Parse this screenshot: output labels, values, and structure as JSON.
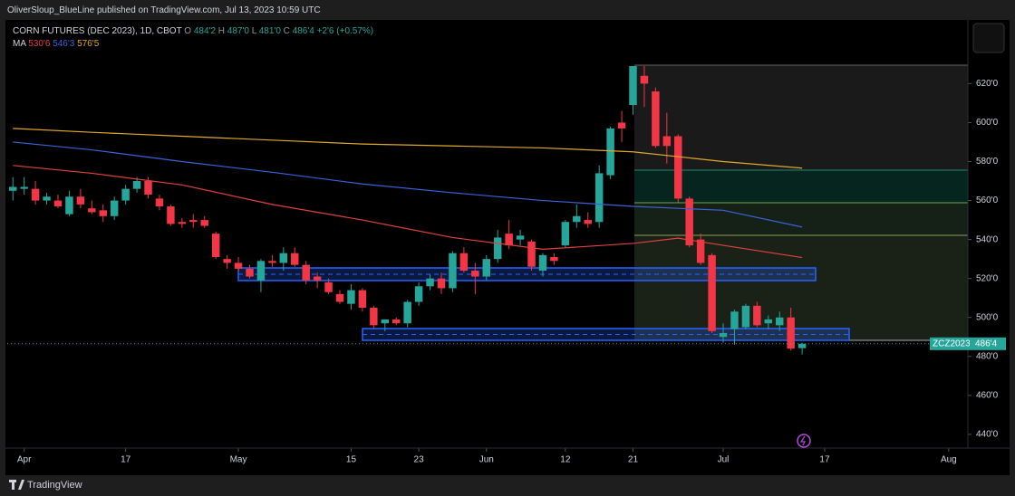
{
  "header": {
    "publisher": "OliverSloup_BlueLine published on TradingView.com, Jul 13, 2023 10:59 UTC",
    "symbol": "CORN FUTURES (DEC 2023), 1D, CBOT",
    "ohlc": [
      {
        "label": "O",
        "value": "484'2"
      },
      {
        "label": "H",
        "value": "487'0"
      },
      {
        "label": "L",
        "value": "481'0"
      },
      {
        "label": "C",
        "value": "486'4"
      }
    ],
    "change": "+2'6 (+0.57%)"
  },
  "footer": {
    "brand": "TradingView"
  },
  "chart_data": {
    "type": "candlestick",
    "up_color": "#26a69a",
    "down_color": "#f23645",
    "open": [
      565,
      566,
      566,
      560,
      560,
      553,
      562,
      556,
      555,
      552,
      560,
      566,
      570,
      561,
      557,
      549,
      550,
      550,
      543,
      530,
      528,
      525,
      519,
      529,
      528,
      533,
      527,
      521,
      518,
      512,
      507,
      514,
      505,
      497,
      499,
      497,
      508,
      516,
      520,
      515,
      533,
      524,
      521,
      530,
      543,
      540,
      539,
      524,
      531,
      537,
      549,
      550,
      549,
      573,
      600,
      609,
      624,
      616,
      593,
      593,
      561,
      540,
      532,
      490,
      494,
      495,
      506,
      497,
      496,
      500,
      484.25
    ],
    "high": [
      572,
      572,
      570,
      564,
      563,
      565,
      566,
      560,
      558,
      562,
      568,
      572,
      572,
      563,
      558,
      551,
      553,
      552,
      544,
      532,
      531,
      527,
      530,
      532,
      536,
      536,
      529,
      523,
      520,
      514,
      517,
      515,
      506,
      499,
      500,
      509,
      518,
      522,
      523,
      534,
      536,
      528,
      532,
      545,
      550,
      545,
      540,
      533,
      533,
      550,
      558,
      554,
      578,
      598,
      606,
      629,
      629,
      618,
      605,
      594,
      562,
      543,
      533,
      497,
      504,
      507,
      508,
      501,
      503,
      505,
      487
    ],
    "low": [
      560,
      563,
      558,
      558,
      556,
      552,
      556,
      553,
      549,
      550,
      558,
      564,
      561,
      555,
      547,
      546,
      546,
      546,
      530,
      525,
      524,
      520,
      513,
      526,
      524,
      526,
      517,
      515,
      512,
      507,
      504,
      503,
      494,
      493,
      496,
      495,
      506,
      514,
      512,
      513,
      523,
      512,
      519,
      528,
      535,
      537,
      524,
      521,
      527,
      536,
      546,
      546,
      546,
      571,
      590,
      604,
      608,
      587,
      579,
      559,
      536,
      527,
      492,
      487,
      486,
      494,
      495,
      494,
      493,
      483,
      481
    ],
    "close": [
      567,
      567,
      560,
      562,
      557,
      562,
      558,
      554,
      552,
      560,
      566,
      570,
      563,
      557,
      548,
      548,
      549,
      547,
      531,
      528,
      525,
      521,
      529,
      528,
      533,
      527,
      519,
      519,
      513,
      508,
      514,
      505,
      496,
      499,
      497,
      508,
      516,
      520,
      515,
      533,
      524,
      521,
      530,
      541,
      537,
      542,
      526,
      532,
      529,
      549,
      552,
      548,
      574,
      597,
      597,
      629,
      620,
      588,
      588,
      561,
      537,
      528,
      493,
      492,
      503,
      506,
      496,
      499,
      500,
      484,
      486.5
    ],
    "ma_label": "MA",
    "moving_averages": [
      {
        "name": "530'6",
        "color": "#e0413f",
        "x": [
          0,
          7,
          15,
          23,
          31,
          39,
          47,
          55,
          59,
          63,
          70
        ],
        "values": [
          578,
          574,
          568,
          558,
          550,
          541,
          535,
          538,
          540.7,
          537,
          530.75
        ]
      },
      {
        "name": "546'3",
        "color": "#3a63d8",
        "x": [
          0,
          7,
          15,
          23,
          31,
          39,
          47,
          55,
          63,
          70
        ],
        "values": [
          590,
          586,
          580,
          574.5,
          568.5,
          564,
          560,
          557,
          555,
          546.375
        ]
      },
      {
        "name": "576'5",
        "color": "#e0a92b",
        "x": [
          0,
          7,
          15,
          23,
          31,
          39,
          47,
          55,
          63,
          70
        ],
        "values": [
          597,
          595,
          593,
          591,
          589,
          588,
          587,
          585,
          580,
          576.625
        ]
      }
    ],
    "last_price": {
      "value": 486.5,
      "label": "486'4"
    },
    "symbol_label": "ZCZ2023",
    "xlim": [
      -0.5,
      84.7
    ],
    "ylim": [
      433,
      642
    ],
    "xticks": [
      {
        "value": 1,
        "label": "Apr"
      },
      {
        "value": 10,
        "label": "17"
      },
      {
        "value": 20,
        "label": "May"
      },
      {
        "value": 30,
        "label": "15"
      },
      {
        "value": 36,
        "label": "23"
      },
      {
        "value": 42,
        "label": "Jun"
      },
      {
        "value": 49,
        "label": "12"
      },
      {
        "value": 55,
        "label": "21"
      },
      {
        "value": 63,
        "label": "Jul"
      },
      {
        "value": 72,
        "label": "17"
      },
      {
        "value": 83,
        "label": "Aug"
      }
    ],
    "yticks": [
      {
        "value": 620,
        "label": "620'0"
      },
      {
        "value": 600,
        "label": "600'0"
      },
      {
        "value": 580,
        "label": "580'0"
      },
      {
        "value": 560,
        "label": "560'0"
      },
      {
        "value": 540,
        "label": "540'0"
      },
      {
        "value": 520,
        "label": "520'0"
      },
      {
        "value": 500,
        "label": "500'0"
      },
      {
        "value": 480,
        "label": "480'0"
      },
      {
        "value": 460,
        "label": "460'0"
      },
      {
        "value": 440,
        "label": "440'0"
      }
    ]
  }
}
